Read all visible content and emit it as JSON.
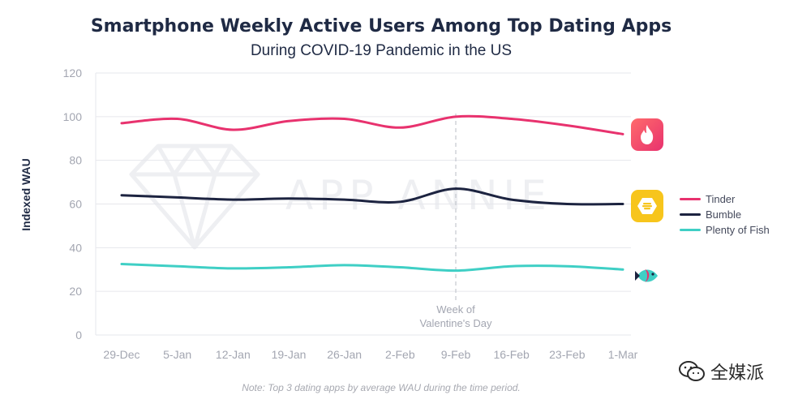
{
  "title": "Smartphone Weekly Active Users Among Top Dating Apps",
  "subtitle": "During COVID-19 Pandemic in the US",
  "note": "Note: Top 3 dating apps by average WAU during the time period.",
  "annotation": "Week of\nValentine's Day",
  "watermark_text": "APP ANNIE",
  "brand_text": "全媒派",
  "colors": {
    "tinder": "#e8326e",
    "bumble": "#1c2340",
    "pof": "#3fcfc5",
    "bumble_icon": "#f7c51c",
    "grid": "#e6e7ec",
    "axis_text": "#a3a6b1"
  },
  "chart_data": {
    "type": "line",
    "ylabel": "Indexed WAU",
    "xlabel": "",
    "ylim": [
      0,
      120
    ],
    "yticks": [
      0,
      20,
      40,
      60,
      80,
      100,
      120
    ],
    "grid": true,
    "legend_position": "right",
    "categories": [
      "29-Dec",
      "5-Jan",
      "12-Jan",
      "19-Jan",
      "26-Jan",
      "2-Feb",
      "9-Feb",
      "16-Feb",
      "23-Feb",
      "1-Mar"
    ],
    "highlight_category": "9-Feb",
    "series": [
      {
        "name": "Tinder",
        "color": "#e8326e",
        "values": [
          97,
          99,
          94,
          98,
          99,
          95,
          100,
          99,
          96,
          92
        ]
      },
      {
        "name": "Bumble",
        "color": "#1c2340",
        "values": [
          64,
          63,
          62,
          62.5,
          62,
          61,
          67,
          62,
          60,
          60
        ]
      },
      {
        "name": "Plenty of Fish",
        "color": "#3fcfc5",
        "values": [
          32.5,
          31.5,
          30.5,
          31,
          32,
          31,
          29.5,
          31.5,
          31.5,
          30
        ]
      }
    ]
  }
}
